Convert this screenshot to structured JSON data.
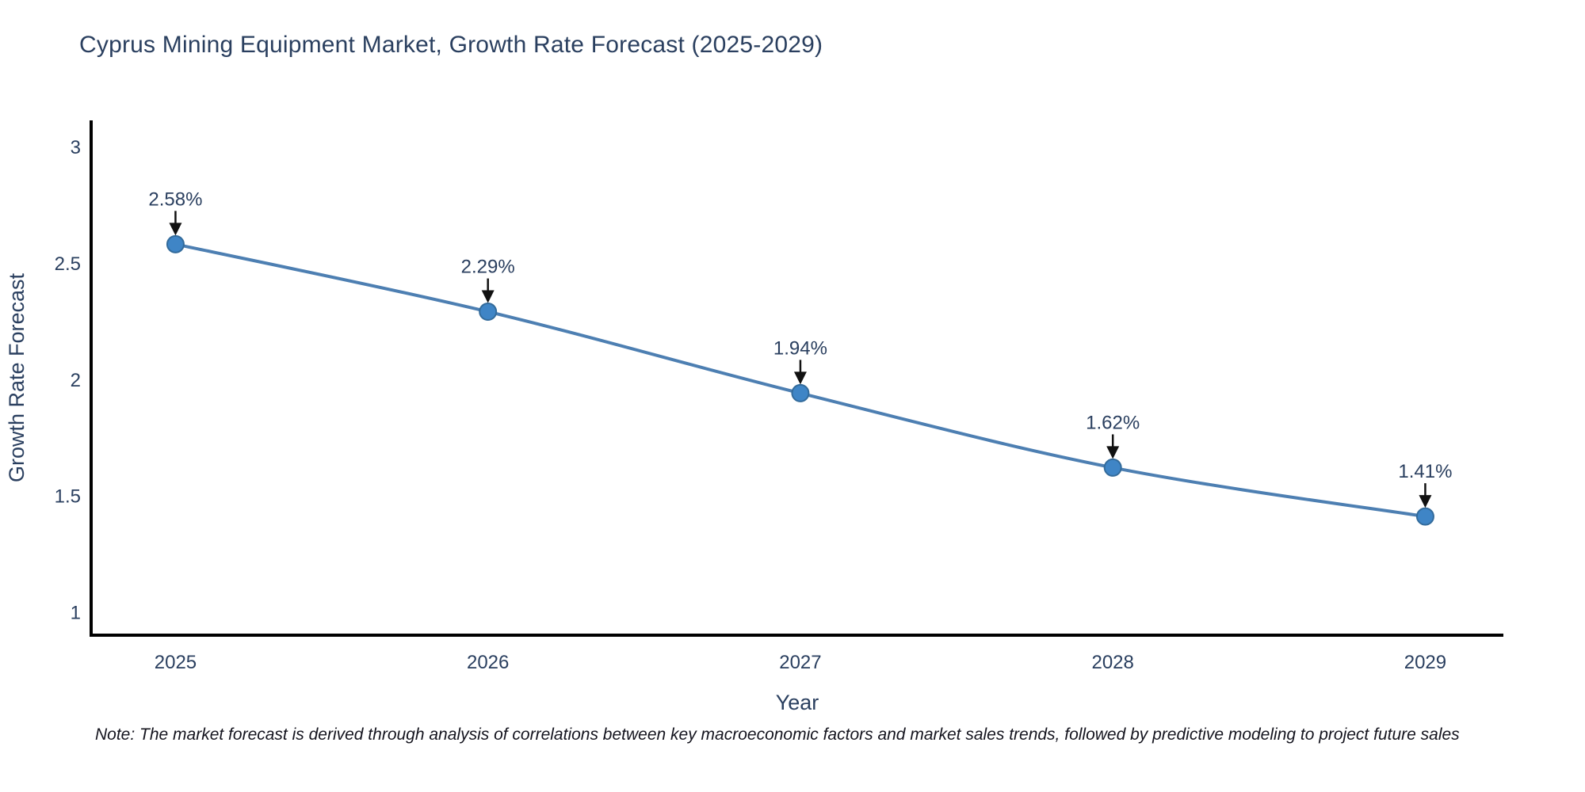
{
  "note": "Note: The market forecast is derived through analysis of correlations between key macroeconomic factors and market sales trends, followed by predictive modeling to project future sales",
  "chart_data": {
    "type": "line",
    "title": "Cyprus Mining Equipment Market, Growth Rate Forecast (2025-2029)",
    "xlabel": "Year",
    "ylabel": "Growth Rate Forecast",
    "x": [
      2025,
      2026,
      2027,
      2028,
      2029
    ],
    "series": [
      {
        "name": "Growth Rate Forecast",
        "values": [
          2.58,
          2.29,
          1.94,
          1.62,
          1.41
        ]
      }
    ],
    "point_labels": [
      "2.58%",
      "2.29%",
      "1.94%",
      "1.62%",
      "1.41%"
    ],
    "xticks": [
      2025,
      2026,
      2027,
      2028,
      2029
    ],
    "yticks": [
      1,
      1.5,
      2,
      2.5,
      3
    ],
    "xlim": [
      2024.73,
      2029.25
    ],
    "ylim": [
      0.9,
      3.112
    ],
    "grid": false,
    "legend": "none",
    "line_shape": "spline",
    "annotation_style": "value labels above each point with black down arrows",
    "colors": {
      "line": "#4d7fb2",
      "marker_fill": "#3f85c6",
      "marker_edge": "#336b9b",
      "text": "#2a3f5f",
      "axis_line": "#000000",
      "arrow": "#111111",
      "background": "#ffffff"
    }
  }
}
